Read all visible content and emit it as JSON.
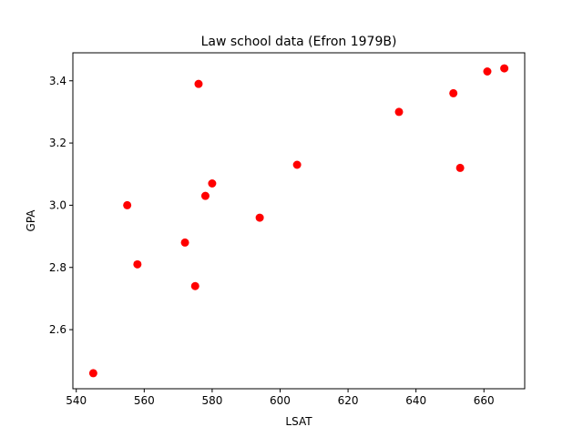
{
  "chart_data": {
    "type": "scatter",
    "title": "Law school data (Efron 1979B)",
    "xlabel": "LSAT",
    "ylabel": "GPA",
    "xlim": [
      539,
      672
    ],
    "ylim": [
      2.41,
      3.49
    ],
    "xticks": [
      540,
      560,
      580,
      600,
      620,
      640,
      660
    ],
    "yticks": [
      2.6,
      2.8,
      3.0,
      3.2,
      3.4
    ],
    "xtick_labels": [
      "540",
      "560",
      "580",
      "600",
      "620",
      "640",
      "660"
    ],
    "ytick_labels": [
      "2.6",
      "2.8",
      "3.0",
      "3.2",
      "3.4"
    ],
    "grid": false,
    "marker_color": "#ff0000",
    "points": [
      {
        "x": 545,
        "y": 2.46
      },
      {
        "x": 555,
        "y": 3.0
      },
      {
        "x": 558,
        "y": 2.81
      },
      {
        "x": 572,
        "y": 2.88
      },
      {
        "x": 575,
        "y": 2.74
      },
      {
        "x": 576,
        "y": 3.39
      },
      {
        "x": 578,
        "y": 3.03
      },
      {
        "x": 580,
        "y": 3.07
      },
      {
        "x": 594,
        "y": 2.96
      },
      {
        "x": 605,
        "y": 3.13
      },
      {
        "x": 635,
        "y": 3.3
      },
      {
        "x": 651,
        "y": 3.36
      },
      {
        "x": 653,
        "y": 3.12
      },
      {
        "x": 661,
        "y": 3.43
      },
      {
        "x": 666,
        "y": 3.44
      }
    ]
  }
}
